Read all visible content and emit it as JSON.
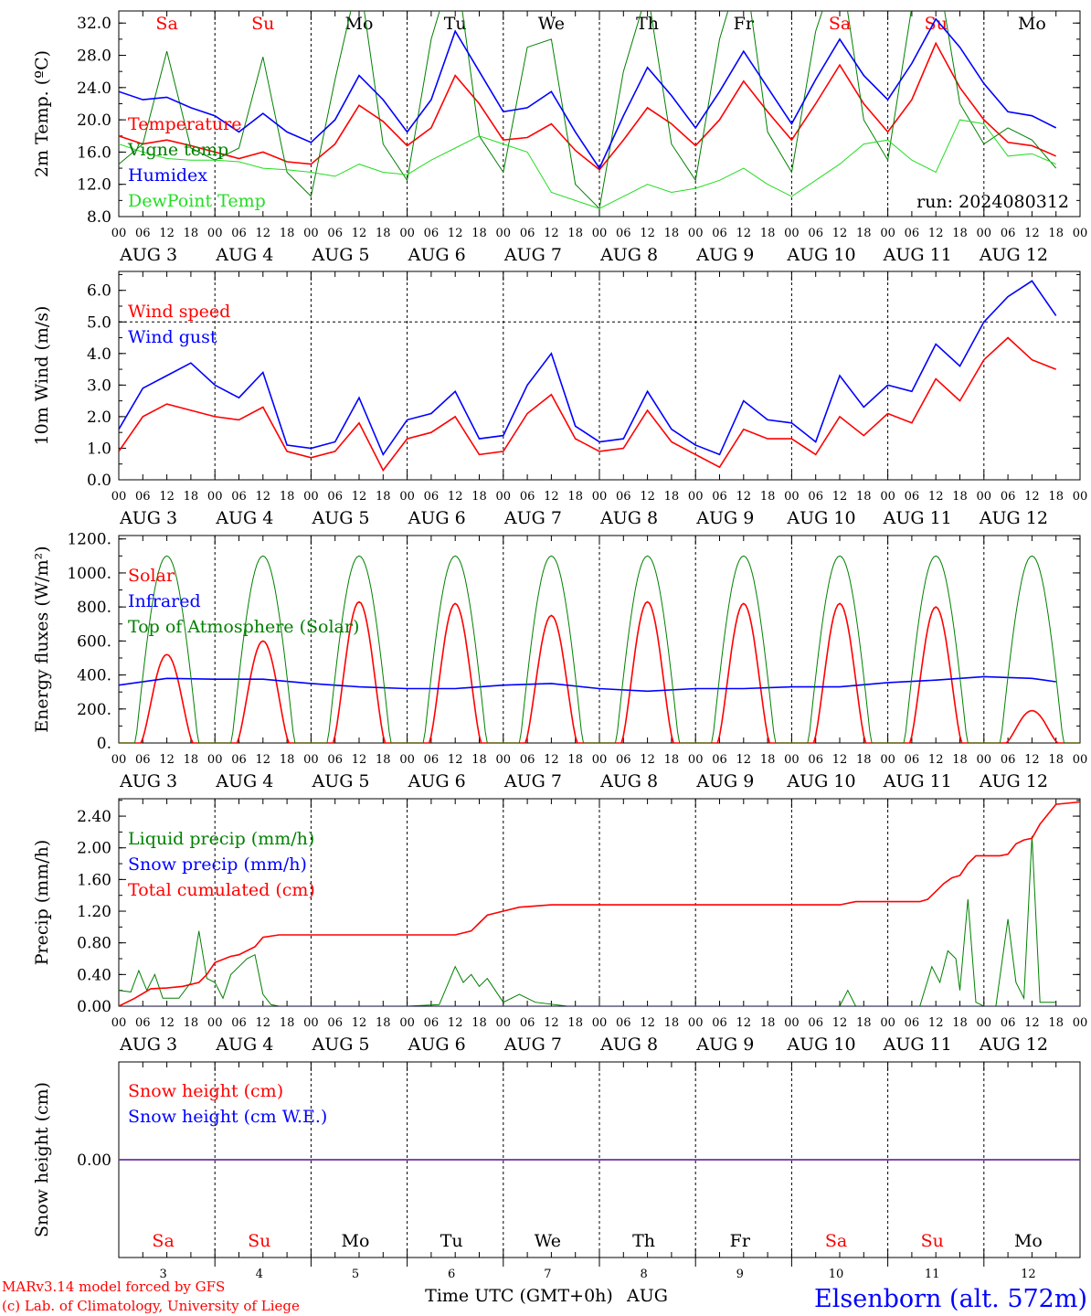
{
  "colors": {
    "red": "#ff0000",
    "green": "#008000",
    "blue": "#0000ff",
    "lightgreen": "#22dd22",
    "purple": "#7030a0",
    "black": "#000000"
  },
  "days": [
    {
      "abbr": "Sa",
      "num": "3",
      "date": "AUG  3",
      "weekend": true
    },
    {
      "abbr": "Su",
      "num": "4",
      "date": "AUG  4",
      "weekend": true
    },
    {
      "abbr": "Mo",
      "num": "5",
      "date": "AUG  5",
      "weekend": false
    },
    {
      "abbr": "Tu",
      "num": "6",
      "date": "AUG  6",
      "weekend": false
    },
    {
      "abbr": "We",
      "num": "7",
      "date": "AUG  7",
      "weekend": false
    },
    {
      "abbr": "Th",
      "num": "8",
      "date": "AUG  8",
      "weekend": false
    },
    {
      "abbr": "Fr",
      "num": "9",
      "date": "AUG  9",
      "weekend": false
    },
    {
      "abbr": "Sa",
      "num": "10",
      "date": "AUG 10",
      "weekend": true
    },
    {
      "abbr": "Su",
      "num": "11",
      "date": "AUG 11",
      "weekend": true
    },
    {
      "abbr": "Mo",
      "num": "12",
      "date": "AUG 12",
      "weekend": false
    }
  ],
  "hour_labels": [
    "00",
    "06",
    "12",
    "18"
  ],
  "end_hour_label": "00",
  "run_label": "run: 2024080312",
  "footer": {
    "model": "MARv3.14 model forced by GFS",
    "credit": "(c) Lab. of Climatology, University of Liege",
    "xlabel": "Time UTC (GMT+0h)",
    "month": "AUG",
    "station": "Elsenborn (alt. 572m)"
  },
  "chart_data": [
    {
      "type": "line",
      "id": "temp",
      "ylabel": "2m Temp. (ºC)",
      "ylim": [
        8,
        33.5
      ],
      "yticks": [
        8.0,
        12.0,
        16.0,
        20.0,
        24.0,
        28.0,
        32.0
      ],
      "ytick_labels": [
        "8.0",
        "12.0",
        "16.0",
        "20.0",
        "24.0",
        "28.0",
        "32.0"
      ],
      "x_unit": "hours since AUG 3 00 UTC",
      "series": [
        {
          "name": "Temperature",
          "color": "#ff0000",
          "x": [
            0,
            6,
            12,
            18,
            24,
            30,
            36,
            42,
            48,
            54,
            60,
            66,
            72,
            78,
            84,
            90,
            96,
            102,
            108,
            114,
            120,
            126,
            132,
            138,
            144,
            150,
            156,
            162,
            168,
            174,
            180,
            186,
            192,
            198,
            204,
            210,
            216,
            222,
            228,
            234
          ],
          "y": [
            18.0,
            17.0,
            17.5,
            16.8,
            16.0,
            15.2,
            16.0,
            14.8,
            14.5,
            17.0,
            21.8,
            19.8,
            16.8,
            19.0,
            25.5,
            22.0,
            17.5,
            17.8,
            19.5,
            16.2,
            13.8,
            17.5,
            21.5,
            19.5,
            16.8,
            20.0,
            24.8,
            21.0,
            17.5,
            22.0,
            26.8,
            22.0,
            18.5,
            22.5,
            29.5,
            24.0,
            20.0,
            17.2,
            16.8,
            15.5
          ]
        },
        {
          "name": "Vigne temp",
          "color": "#008000",
          "x": [
            0,
            6,
            12,
            18,
            24,
            30,
            36,
            42,
            48,
            54,
            60,
            66,
            72,
            78,
            84,
            90,
            96,
            102,
            108,
            114,
            120,
            126,
            132,
            138,
            144,
            150,
            156,
            162,
            168,
            174,
            180,
            186,
            192,
            198,
            204,
            210,
            216,
            222,
            228,
            234
          ],
          "y": [
            14.5,
            17.0,
            28.5,
            16.5,
            15.0,
            16.5,
            27.8,
            13.5,
            10.5,
            25.0,
            38.0,
            17.0,
            12.5,
            30.0,
            40.0,
            18.0,
            13.5,
            29.0,
            30.0,
            12.0,
            9.0,
            26.0,
            36.0,
            17.0,
            12.5,
            30.0,
            40.0,
            18.5,
            13.5,
            31.0,
            40.0,
            20.0,
            15.0,
            34.0,
            40.0,
            22.0,
            17.0,
            19.0,
            17.5,
            14.0
          ]
        },
        {
          "name": "Humidex",
          "color": "#0000ff",
          "x": [
            0,
            6,
            12,
            18,
            24,
            30,
            36,
            42,
            48,
            54,
            60,
            66,
            72,
            78,
            84,
            90,
            96,
            102,
            108,
            114,
            120,
            126,
            132,
            138,
            144,
            150,
            156,
            162,
            168,
            174,
            180,
            186,
            192,
            198,
            204,
            210,
            216,
            222,
            228,
            234
          ],
          "y": [
            23.5,
            22.5,
            22.8,
            21.5,
            20.5,
            18.5,
            20.8,
            18.5,
            17.2,
            20.0,
            25.5,
            22.5,
            18.5,
            22.5,
            31.0,
            26.0,
            21.0,
            21.5,
            23.5,
            18.5,
            14.0,
            20.5,
            26.5,
            23.0,
            19.0,
            23.5,
            28.5,
            24.0,
            19.5,
            25.0,
            30.0,
            25.5,
            22.5,
            27.0,
            32.5,
            29.0,
            24.5,
            21.0,
            20.5,
            19.0
          ]
        },
        {
          "name": "DewPoint Temp",
          "color": "#22dd22",
          "x": [
            0,
            6,
            12,
            18,
            24,
            30,
            36,
            42,
            48,
            54,
            60,
            66,
            72,
            78,
            84,
            90,
            96,
            102,
            108,
            114,
            120,
            126,
            132,
            138,
            144,
            150,
            156,
            162,
            168,
            174,
            180,
            186,
            192,
            198,
            204,
            210,
            216,
            222,
            228,
            234
          ],
          "y": [
            17.0,
            16.0,
            15.2,
            15.0,
            15.0,
            14.8,
            14.0,
            13.8,
            13.5,
            13.0,
            14.5,
            13.5,
            13.2,
            15.0,
            16.5,
            18.0,
            17.0,
            16.0,
            11.0,
            10.0,
            9.0,
            10.5,
            12.0,
            11.0,
            11.5,
            12.5,
            14.0,
            12.0,
            10.5,
            12.5,
            14.5,
            17.0,
            17.5,
            15.0,
            13.5,
            20.0,
            19.5,
            15.5,
            15.8,
            14.5
          ]
        }
      ]
    },
    {
      "type": "line",
      "id": "wind",
      "ylabel": "10m Wind (m/s)",
      "ylim": [
        0,
        6.6
      ],
      "yticks": [
        0,
        1,
        2,
        3,
        4,
        5,
        6
      ],
      "ytick_labels": [
        "0.0",
        "1.0",
        "2.0",
        "3.0",
        "4.0",
        "5.0",
        "6.0"
      ],
      "hline": 5.0,
      "series": [
        {
          "name": "Wind speed",
          "color": "#ff0000",
          "x": [
            0,
            6,
            12,
            18,
            24,
            30,
            36,
            42,
            48,
            54,
            60,
            66,
            72,
            78,
            84,
            90,
            96,
            102,
            108,
            114,
            120,
            126,
            132,
            138,
            144,
            150,
            156,
            162,
            168,
            174,
            180,
            186,
            192,
            198,
            204,
            210,
            216,
            222,
            228,
            234
          ],
          "y": [
            0.9,
            2.0,
            2.4,
            2.2,
            2.0,
            1.9,
            2.3,
            0.9,
            0.7,
            0.9,
            1.8,
            0.3,
            1.3,
            1.5,
            2.0,
            0.8,
            0.9,
            2.1,
            2.7,
            1.3,
            0.9,
            1.0,
            2.2,
            1.2,
            0.8,
            0.4,
            1.6,
            1.3,
            1.3,
            0.8,
            2.0,
            1.4,
            2.1,
            1.8,
            3.2,
            2.5,
            3.8,
            4.5,
            3.8,
            3.5
          ]
        },
        {
          "name": "Wind gust",
          "color": "#0000ff",
          "x": [
            0,
            6,
            12,
            18,
            24,
            30,
            36,
            42,
            48,
            54,
            60,
            66,
            72,
            78,
            84,
            90,
            96,
            102,
            108,
            114,
            120,
            126,
            132,
            138,
            144,
            150,
            156,
            162,
            168,
            174,
            180,
            186,
            192,
            198,
            204,
            210,
            216,
            222,
            228,
            234
          ],
          "y": [
            1.6,
            2.9,
            3.3,
            3.7,
            3.0,
            2.6,
            3.4,
            1.1,
            1.0,
            1.2,
            2.6,
            0.8,
            1.9,
            2.1,
            2.8,
            1.3,
            1.4,
            3.0,
            4.0,
            1.7,
            1.2,
            1.3,
            2.8,
            1.6,
            1.1,
            0.8,
            2.5,
            1.9,
            1.8,
            1.2,
            3.3,
            2.3,
            3.0,
            2.8,
            4.3,
            3.6,
            5.0,
            5.8,
            6.3,
            5.2
          ]
        }
      ]
    },
    {
      "type": "line",
      "id": "energy",
      "ylabel": "Energy fluxes (W/m²)",
      "ylim": [
        0,
        1220
      ],
      "yticks": [
        0,
        200,
        400,
        600,
        800,
        1000,
        1200
      ],
      "ytick_labels": [
        "0.",
        "200.",
        "400.",
        "600.",
        "800.",
        "1000.",
        "1200."
      ],
      "series": [
        {
          "name": "Solar",
          "color": "#ff0000",
          "peaks": [
            520,
            600,
            830,
            820,
            750,
            830,
            820,
            820,
            800,
            190
          ]
        },
        {
          "name": "Infrared",
          "color": "#0000ff",
          "x": [
            0,
            12,
            24,
            36,
            48,
            60,
            72,
            84,
            96,
            108,
            120,
            132,
            144,
            156,
            168,
            180,
            192,
            204,
            216,
            228,
            234
          ],
          "y": [
            340,
            380,
            375,
            375,
            350,
            330,
            320,
            320,
            340,
            350,
            320,
            305,
            320,
            320,
            330,
            330,
            355,
            370,
            390,
            380,
            360
          ]
        },
        {
          "name": "Top of Atmosphere (Solar)",
          "color": "#008000",
          "peak": 1100,
          "sunrise": 4.2,
          "sunset": 19.8
        }
      ]
    },
    {
      "type": "line",
      "id": "precip",
      "ylabel": "Precip (mm/h)",
      "ylim": [
        0,
        2.62
      ],
      "yticks": [
        0,
        0.4,
        0.8,
        1.2,
        1.6,
        2.0,
        2.4
      ],
      "ytick_labels": [
        "0.00",
        "0.40",
        "0.80",
        "1.20",
        "1.60",
        "2.00",
        "2.40"
      ],
      "series": [
        {
          "name": "Liquid precip (mm/h)",
          "color": "#008000",
          "x": [
            0,
            3,
            5,
            7,
            9,
            11,
            15,
            18,
            20,
            22,
            24,
            26,
            28,
            32,
            34,
            36,
            38,
            40,
            48,
            72,
            80,
            84,
            86,
            88,
            90,
            92,
            96,
            100,
            104,
            112,
            180,
            182,
            184,
            200,
            203,
            205,
            207,
            209,
            210,
            212,
            214,
            216,
            219,
            222,
            224,
            226,
            228,
            230,
            234
          ],
          "y": [
            0.2,
            0.18,
            0.45,
            0.2,
            0.4,
            0.1,
            0.1,
            0.3,
            0.95,
            0.35,
            0.3,
            0.1,
            0.4,
            0.6,
            0.65,
            0.15,
            0.02,
            0.0,
            0.0,
            0.0,
            0.02,
            0.5,
            0.3,
            0.4,
            0.25,
            0.35,
            0.05,
            0.15,
            0.05,
            0.0,
            0.0,
            0.2,
            0.0,
            0.0,
            0.5,
            0.3,
            0.7,
            0.6,
            0.2,
            1.35,
            0.05,
            0.0,
            0.0,
            1.1,
            0.3,
            0.1,
            2.15,
            0.05,
            0.05
          ]
        },
        {
          "name": "Snow precip (mm/h)",
          "color": "#0000ff",
          "x": [
            0,
            240
          ],
          "y": [
            0,
            0
          ]
        },
        {
          "name": "Total cumulated (cm)",
          "color": "#ff0000",
          "x": [
            0,
            4,
            8,
            12,
            16,
            20,
            22,
            24,
            28,
            30,
            34,
            36,
            40,
            48,
            60,
            72,
            84,
            88,
            90,
            92,
            96,
            100,
            108,
            120,
            150,
            180,
            184,
            200,
            202,
            204,
            206,
            208,
            210,
            212,
            214,
            216,
            220,
            222,
            224,
            226,
            228,
            230,
            234,
            240
          ],
          "y": [
            0.0,
            0.1,
            0.22,
            0.23,
            0.25,
            0.3,
            0.4,
            0.55,
            0.63,
            0.65,
            0.75,
            0.87,
            0.9,
            0.9,
            0.9,
            0.9,
            0.9,
            0.95,
            1.05,
            1.15,
            1.2,
            1.25,
            1.28,
            1.28,
            1.28,
            1.28,
            1.32,
            1.32,
            1.35,
            1.45,
            1.55,
            1.62,
            1.65,
            1.8,
            1.9,
            1.9,
            1.9,
            1.92,
            2.05,
            2.1,
            2.12,
            2.3,
            2.55,
            2.58
          ]
        }
      ]
    },
    {
      "type": "line",
      "id": "snow",
      "ylabel": "Snow height (cm)",
      "ylim": [
        -1,
        1
      ],
      "yticks": [
        0
      ],
      "ytick_labels": [
        "0.00"
      ],
      "series": [
        {
          "name": "Snow height (cm)",
          "color": "#ff0000",
          "x": [
            0,
            240
          ],
          "y": [
            0,
            0
          ]
        },
        {
          "name": "Snow height (cm W.E.)",
          "color": "#0000ff",
          "x": [
            0,
            240
          ],
          "y": [
            0,
            0
          ]
        }
      ]
    }
  ]
}
